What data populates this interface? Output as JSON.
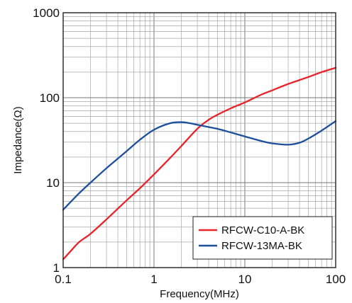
{
  "chart_data": {
    "type": "line",
    "title": "",
    "xlabel": "Frequency(MHz)",
    "ylabel": "Impedance(Ω)",
    "x_scale": "log",
    "y_scale": "log",
    "xlim": [
      0.1,
      100
    ],
    "ylim": [
      1,
      1000
    ],
    "x_ticks": [
      {
        "value": 0.1,
        "label": "0.1"
      },
      {
        "value": 1,
        "label": "1"
      },
      {
        "value": 10,
        "label": "10"
      },
      {
        "value": 100,
        "label": "100"
      }
    ],
    "y_ticks": [
      {
        "value": 1,
        "label": "1"
      },
      {
        "value": 10,
        "label": "10"
      },
      {
        "value": 100,
        "label": "100"
      },
      {
        "value": 1000,
        "label": "1000"
      }
    ],
    "grid": true,
    "legend_position": "bottom-right",
    "series": [
      {
        "name": "RFCW-C10-A-BK",
        "color": "#e8232a",
        "x": [
          0.1,
          0.12,
          0.15,
          0.2,
          0.3,
          0.5,
          0.7,
          1,
          1.5,
          2,
          3,
          4,
          5,
          7,
          10,
          15,
          20,
          30,
          50,
          70,
          100
        ],
        "y": [
          1.25,
          1.55,
          2.0,
          2.5,
          3.7,
          6.2,
          8.6,
          12.5,
          19.5,
          27,
          43,
          55,
          63,
          75,
          88,
          108,
          122,
          145,
          175,
          200,
          225
        ]
      },
      {
        "name": "RFCW-13MA-BK",
        "color": "#1d4f9c",
        "x": [
          0.1,
          0.15,
          0.2,
          0.3,
          0.5,
          0.7,
          1,
          1.5,
          2,
          2.5,
          3,
          5,
          7,
          10,
          15,
          20,
          30,
          40,
          50,
          70,
          100
        ],
        "y": [
          4.8,
          7.5,
          10,
          14.8,
          23.5,
          32,
          42,
          50,
          51.5,
          50,
          48,
          43,
          39,
          35,
          31,
          29,
          28,
          29.5,
          33,
          41,
          53
        ]
      }
    ]
  }
}
